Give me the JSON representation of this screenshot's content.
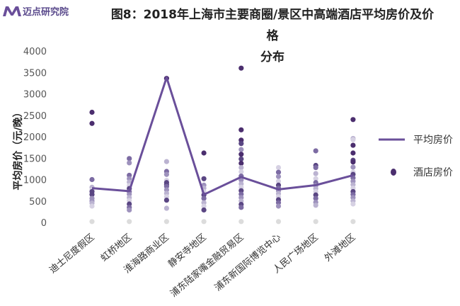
{
  "brand": {
    "name": "迈点研究院",
    "mark": "M"
  },
  "chart_data": {
    "type": "line+scatter",
    "title_line1": "图8：2018年上海市主要商圈/景区中高端酒店平均房价及价格",
    "title_line2": "分布",
    "ylabel": "平均房价（元/晚）",
    "ylim": [
      0,
      4000
    ],
    "yticks": [
      0,
      500,
      1000,
      1500,
      2000,
      2500,
      3000,
      3500,
      4000
    ],
    "legend_position": "right",
    "categories": [
      "迪士尼度假区",
      "虹桥地区",
      "淮海路商业区",
      "静安寺地区",
      "浦东陆家嘴金融贸易区",
      "浦东新国际博览中心",
      "人民广场地区",
      "外滩地区"
    ],
    "series": [
      {
        "name": "平均房价",
        "type": "line",
        "color": "#6a4f9a",
        "values": [
          800,
          730,
          3380,
          650,
          1060,
          770,
          870,
          1100
        ]
      },
      {
        "name": "酒店房价",
        "type": "scatter",
        "color": "#4b2e6e",
        "points": [
          [
            0,
            2570
          ],
          [
            0,
            2310
          ],
          [
            0,
            1000
          ],
          [
            0,
            820
          ],
          [
            0,
            760
          ],
          [
            0,
            720
          ],
          [
            0,
            650
          ],
          [
            0,
            560
          ],
          [
            0,
            500
          ],
          [
            0,
            450
          ],
          [
            0,
            380
          ],
          [
            0,
            20
          ],
          [
            1,
            1490
          ],
          [
            1,
            1390
          ],
          [
            1,
            1100
          ],
          [
            1,
            1020
          ],
          [
            1,
            940
          ],
          [
            1,
            860
          ],
          [
            1,
            790
          ],
          [
            1,
            720
          ],
          [
            1,
            660
          ],
          [
            1,
            580
          ],
          [
            1,
            510
          ],
          [
            1,
            430
          ],
          [
            1,
            350
          ],
          [
            1,
            290
          ],
          [
            1,
            20
          ],
          [
            2,
            3360
          ],
          [
            2,
            1420
          ],
          [
            2,
            1190
          ],
          [
            2,
            1120
          ],
          [
            2,
            980
          ],
          [
            2,
            930
          ],
          [
            2,
            880
          ],
          [
            2,
            840
          ],
          [
            2,
            760
          ],
          [
            2,
            680
          ],
          [
            2,
            600
          ],
          [
            2,
            520
          ],
          [
            2,
            330
          ],
          [
            2,
            20
          ],
          [
            3,
            1620
          ],
          [
            3,
            1020
          ],
          [
            3,
            870
          ],
          [
            3,
            800
          ],
          [
            3,
            720
          ],
          [
            3,
            640
          ],
          [
            3,
            560
          ],
          [
            3,
            460
          ],
          [
            3,
            380
          ],
          [
            3,
            290
          ],
          [
            3,
            20
          ],
          [
            4,
            3600
          ],
          [
            4,
            2160
          ],
          [
            4,
            1920
          ],
          [
            4,
            1840
          ],
          [
            4,
            1700
          ],
          [
            4,
            1590
          ],
          [
            4,
            1480
          ],
          [
            4,
            1380
          ],
          [
            4,
            1280
          ],
          [
            4,
            1180
          ],
          [
            4,
            1080
          ],
          [
            4,
            990
          ],
          [
            4,
            900
          ],
          [
            4,
            820
          ],
          [
            4,
            740
          ],
          [
            4,
            660
          ],
          [
            4,
            580
          ],
          [
            4,
            500
          ],
          [
            4,
            420
          ],
          [
            4,
            350
          ],
          [
            4,
            20
          ],
          [
            5,
            1280
          ],
          [
            5,
            1170
          ],
          [
            5,
            1070
          ],
          [
            5,
            960
          ],
          [
            5,
            870
          ],
          [
            5,
            800
          ],
          [
            5,
            740
          ],
          [
            5,
            670
          ],
          [
            5,
            600
          ],
          [
            5,
            530
          ],
          [
            5,
            460
          ],
          [
            5,
            380
          ],
          [
            5,
            20
          ],
          [
            6,
            1670
          ],
          [
            6,
            1330
          ],
          [
            6,
            1280
          ],
          [
            6,
            1140
          ],
          [
            6,
            1020
          ],
          [
            6,
            930
          ],
          [
            6,
            860
          ],
          [
            6,
            790
          ],
          [
            6,
            720
          ],
          [
            6,
            640
          ],
          [
            6,
            560
          ],
          [
            6,
            470
          ],
          [
            6,
            400
          ],
          [
            6,
            20
          ],
          [
            7,
            2400
          ],
          [
            7,
            1960
          ],
          [
            7,
            1930
          ],
          [
            7,
            1800
          ],
          [
            7,
            1620
          ],
          [
            7,
            1450
          ],
          [
            7,
            1410
          ],
          [
            7,
            1290
          ],
          [
            7,
            1170
          ],
          [
            7,
            1120
          ],
          [
            7,
            1040
          ],
          [
            7,
            960
          ],
          [
            7,
            880
          ],
          [
            7,
            800
          ],
          [
            7,
            720
          ],
          [
            7,
            650
          ],
          [
            7,
            580
          ],
          [
            7,
            500
          ],
          [
            7,
            430
          ],
          [
            7,
            20
          ]
        ]
      }
    ],
    "grid": false
  }
}
